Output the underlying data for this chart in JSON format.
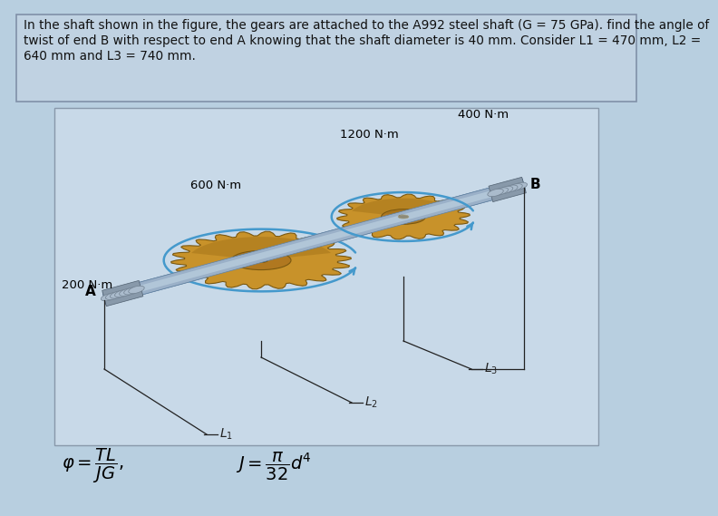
{
  "bg_outer": "#b8cfe0",
  "bg_inner": "#c8d9e8",
  "text_box_bg": "#c0d2e2",
  "title_text_line1": "In the shaft shown in the figure, the gears are attached to the A992 steel shaft (G = 75 GPa). find the angle of",
  "title_text_line2": "twist of end B with respect to end A knowing that the shaft diameter is 40 mm. Consider L1 = 470 mm, L2 =",
  "title_text_line3": "640 mm and L3 = 740 mm.",
  "title_fontsize": 9.8,
  "shaft_color_main": "#9ab0c8",
  "shaft_color_highlight": "#c8dce8",
  "shaft_color_shadow": "#6080a0",
  "gear_color_main": "#c8922a",
  "gear_color_dark": "#a07018",
  "gear_color_hub": "#b07820",
  "gear_color_center": "#503808",
  "gear_edge": "#7a5810",
  "arrow_color": "#4499cc",
  "dim_line_color": "#222222",
  "label_color": "#111111",
  "formula_phi": "\\varphi = \\frac{TL}{JG},",
  "formula_J": "J = \\frac{\\pi}{32}d^4"
}
